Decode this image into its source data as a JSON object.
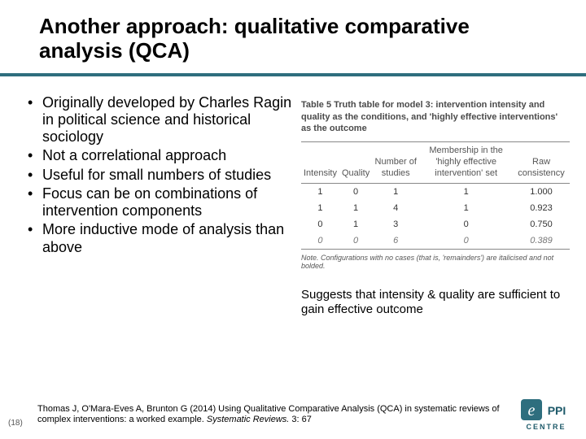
{
  "title": "Another approach: qualitative comparative analysis (QCA)",
  "bullets": [
    "Originally developed by Charles Ragin in political science and historical sociology",
    "Not a correlational approach",
    "Useful for small numbers of studies",
    "Focus can be on combinations of intervention components",
    "More inductive mode of analysis than above"
  ],
  "table": {
    "caption": "Table 5 Truth table for model 3: intervention intensity and quality as the conditions, and 'highly effective interventions' as the outcome",
    "columns": [
      "Intensity",
      "Quality",
      "Number of studies",
      "Membership in the 'highly effective intervention' set",
      "Raw consistency"
    ],
    "rows": [
      {
        "cells": [
          "1",
          "0",
          "1",
          "1",
          "1.000"
        ],
        "italic": false
      },
      {
        "cells": [
          "1",
          "1",
          "4",
          "1",
          "0.923"
        ],
        "italic": false
      },
      {
        "cells": [
          "0",
          "1",
          "3",
          "0",
          "0.750"
        ],
        "italic": false
      },
      {
        "cells": [
          "0",
          "0",
          "6",
          "0",
          "0.389"
        ],
        "italic": true
      }
    ],
    "note": "Note. Configurations with no cases (that is, 'remainders') are italicised and not bolded.",
    "accent_color": "#2e6e7e"
  },
  "suggests": "Suggests that intensity & quality are sufficient to gain effective outcome",
  "citation_prefix": "Thomas J, O'Mara-Eves A, Brunton G (2014) Using Qualitative Comparative Analysis (QCA) in systematic reviews of complex interventions: a worked example. ",
  "citation_journal": "Systematic Reviews.",
  "citation_suffix": " 3: 67",
  "page_number": "(18)",
  "logo": {
    "letter": "e",
    "text": "CENTRE",
    "brand": "PPi",
    "bg_color": "#2e6e7e",
    "letter_color": "#ffffff"
  }
}
